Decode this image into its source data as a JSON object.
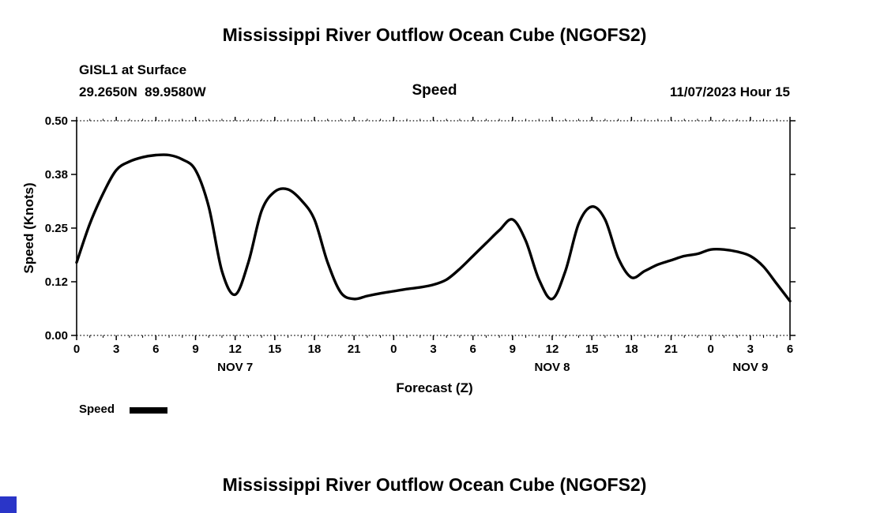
{
  "page": {
    "top_title": "Mississippi River Outflow Ocean Cube (NGOFS2)",
    "bottom_title": "Mississippi River Outflow Ocean Cube (NGOFS2)"
  },
  "header": {
    "station": "GISL1 at Surface",
    "coordinates": "29.2650N  89.9580W",
    "plot_label": "Speed",
    "datetime": "11/07/2023 Hour 15"
  },
  "axes": {
    "y_label": "Speed (Knots)",
    "x_label": "Forecast (Z)"
  },
  "legend": {
    "label": "Speed"
  },
  "colors": {
    "line": "#000000",
    "text": "#000000",
    "background": "#ffffff",
    "corner_square": "#2a35c8"
  },
  "chart_data": {
    "type": "line",
    "title": "Speed",
    "subtitle": "GISL1 at Surface, 29.2650N 89.9580W, 11/07/2023 Hour 15",
    "xlabel": "Forecast (Z)",
    "ylabel": "Speed (Knots)",
    "ylim": [
      0,
      0.5
    ],
    "grid": false,
    "legend_position": "bottom-left",
    "line_color": "#000000",
    "y_ticks": [
      {
        "value": 0.0,
        "label": "0.00"
      },
      {
        "value": 0.125,
        "label": "0.12"
      },
      {
        "value": 0.25,
        "label": "0.25"
      },
      {
        "value": 0.375,
        "label": "0.38"
      },
      {
        "value": 0.5,
        "label": "0.50"
      }
    ],
    "x_hours_range": [
      0,
      54
    ],
    "x_ticks": [
      {
        "hour": 0,
        "label": "0"
      },
      {
        "hour": 3,
        "label": "3"
      },
      {
        "hour": 6,
        "label": "6"
      },
      {
        "hour": 9,
        "label": "9"
      },
      {
        "hour": 12,
        "label": "12"
      },
      {
        "hour": 15,
        "label": "15"
      },
      {
        "hour": 18,
        "label": "18"
      },
      {
        "hour": 21,
        "label": "21"
      },
      {
        "hour": 24,
        "label": "0"
      },
      {
        "hour": 27,
        "label": "3"
      },
      {
        "hour": 30,
        "label": "6"
      },
      {
        "hour": 33,
        "label": "9"
      },
      {
        "hour": 36,
        "label": "12"
      },
      {
        "hour": 39,
        "label": "15"
      },
      {
        "hour": 42,
        "label": "18"
      },
      {
        "hour": 45,
        "label": "21"
      },
      {
        "hour": 48,
        "label": "0"
      },
      {
        "hour": 51,
        "label": "3"
      },
      {
        "hour": 54,
        "label": "6"
      }
    ],
    "date_labels": [
      {
        "hour": 12,
        "label": "NOV 7"
      },
      {
        "hour": 36,
        "label": "NOV 8"
      },
      {
        "hour": 51,
        "label": "NOV 9"
      }
    ],
    "series": [
      {
        "name": "Speed",
        "x_start_hour": 0,
        "x_step_hours": 1,
        "values": [
          0.17,
          0.26,
          0.33,
          0.385,
          0.405,
          0.415,
          0.42,
          0.42,
          0.41,
          0.385,
          0.3,
          0.15,
          0.095,
          0.17,
          0.29,
          0.335,
          0.34,
          0.315,
          0.27,
          0.17,
          0.1,
          0.085,
          0.092,
          0.098,
          0.103,
          0.108,
          0.112,
          0.118,
          0.13,
          0.155,
          0.185,
          0.215,
          0.245,
          0.27,
          0.22,
          0.13,
          0.085,
          0.15,
          0.26,
          0.3,
          0.27,
          0.18,
          0.135,
          0.15,
          0.165,
          0.175,
          0.185,
          0.19,
          0.2,
          0.2,
          0.195,
          0.185,
          0.16,
          0.12,
          0.08
        ]
      }
    ]
  }
}
